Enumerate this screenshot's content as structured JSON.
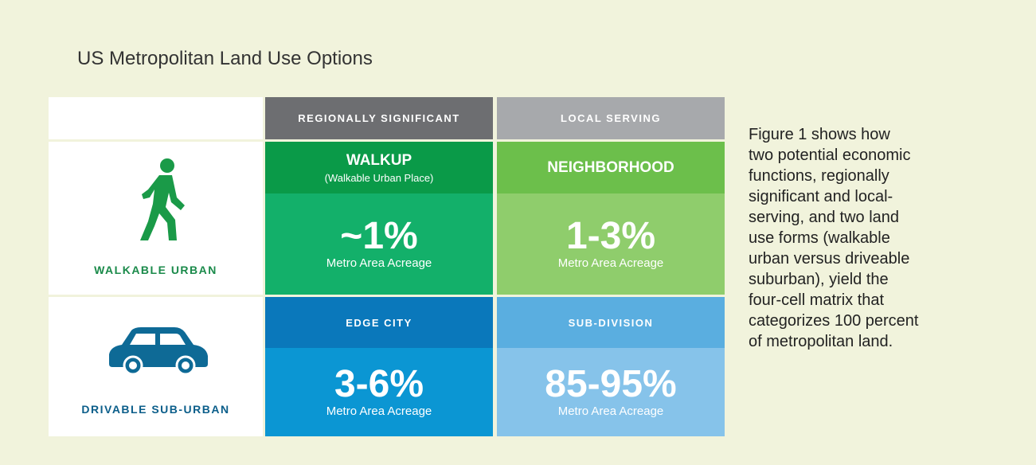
{
  "title": "US Metropolitan Land Use Options",
  "columns": [
    "REGIONALLY SIGNIFICANT",
    "LOCAL SERVING"
  ],
  "rows": [
    {
      "label": "WALKABLE URBAN",
      "cells": [
        {
          "name": "WALKUP",
          "subtitle": "(Walkable Urban Place)",
          "value": "~1%",
          "caption": "Metro Area Acreage"
        },
        {
          "name": "NEIGHBORHOOD",
          "value": "1-3%",
          "caption": "Metro Area Acreage"
        }
      ]
    },
    {
      "label": "DRIVABLE SUB-URBAN",
      "cells": [
        {
          "name": "EDGE CITY",
          "value": "3-6%",
          "caption": "Metro Area Acreage"
        },
        {
          "name": "SUB-DIVISION",
          "value": "85-95%",
          "caption": "Metro Area Acreage"
        }
      ]
    }
  ],
  "description": [
    "Figure 1 shows how",
    "two potential economic",
    "functions, regionally",
    "significant and local-",
    "serving, and two land",
    "use forms (walkable",
    "urban versus driveable",
    "suburban), yield the",
    "four-cell matrix that",
    "categorizes 100 percent",
    "of metropolitan land."
  ]
}
